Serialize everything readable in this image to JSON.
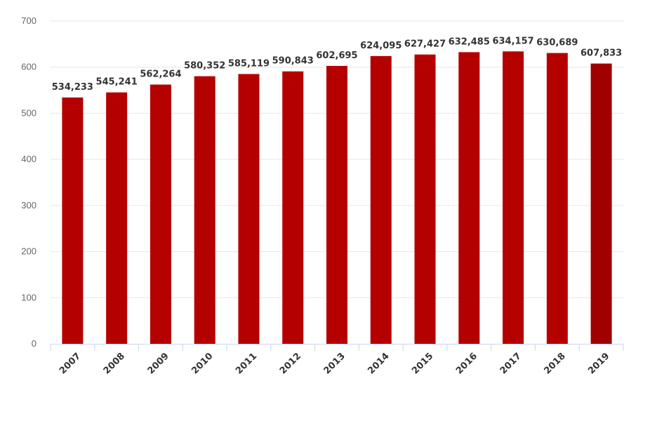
{
  "chart_data": {
    "type": "bar",
    "categories": [
      "2007",
      "2008",
      "2009",
      "2010",
      "2011",
      "2012",
      "2013",
      "2014",
      "2015",
      "2016",
      "2017",
      "2018",
      "2019"
    ],
    "values": [
      534.233,
      545.241,
      562.264,
      580.352,
      585.119,
      590.843,
      602.695,
      624.095,
      627.427,
      632.485,
      634.157,
      630.689,
      607.833
    ],
    "data_labels": [
      "534,233",
      "545,241",
      "562,264",
      "580,352",
      "585,119",
      "590,843",
      "602,695",
      "624,095",
      "627,427",
      "632,485",
      "634,157",
      "630,689",
      "607,833"
    ],
    "y_ticks": [
      "0",
      "100",
      "200",
      "300",
      "400",
      "500",
      "600",
      "700"
    ],
    "ylim": [
      0,
      700
    ],
    "grid": true,
    "colors": {
      "bar": "#b50000",
      "bar_last": "#a00000"
    }
  }
}
